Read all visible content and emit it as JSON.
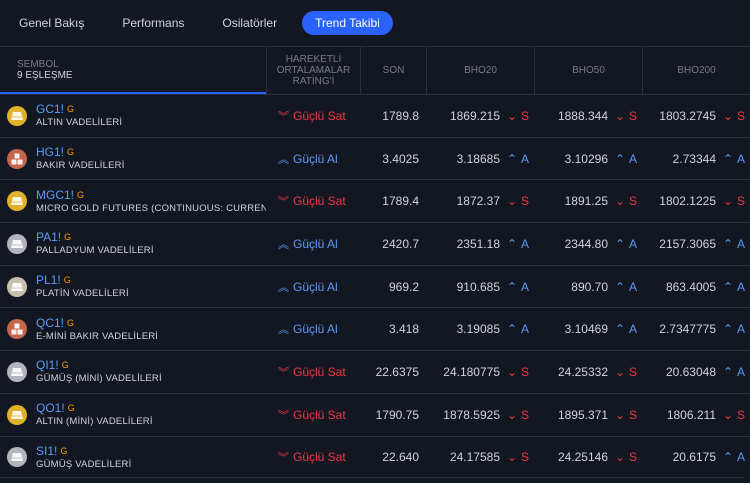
{
  "tabs": [
    {
      "label": "Genel Bakış",
      "active": false
    },
    {
      "label": "Performans",
      "active": false
    },
    {
      "label": "Osilatörler",
      "active": false
    },
    {
      "label": "Trend Takibi",
      "active": true
    }
  ],
  "header": {
    "symbol_label": "SEMBOL",
    "match_count": "9 EŞLEŞME",
    "rating_label": "HAREKETLİ ORTALAMALAR RATİNG'İ",
    "son_label": "SON",
    "bho20_label": "BHO20",
    "bho50_label": "BHO50",
    "bho200_label": "BHO200"
  },
  "colors": {
    "sell": "#f23645",
    "buy": "#5b9cf6",
    "accent": "#2962ff",
    "gold": "#e0b12a",
    "copper": "#c4664a",
    "silver": "#b2b5be"
  },
  "rows": [
    {
      "ticker": "GC1!",
      "flag": "G",
      "desc": "ALTIN VADELİLERİ",
      "logo": "gold-bar-icon",
      "logo_color": "#e0b12a",
      "rating": "Güçlü Sat",
      "rating_type": "sell",
      "son": "1789.8",
      "bho20": "1869.215",
      "bho20_sig": "S",
      "bho50": "1888.344",
      "bho50_sig": "S",
      "bho200": "1803.2745",
      "bho200_sig": "S"
    },
    {
      "ticker": "HG1!",
      "flag": "G",
      "desc": "BAKIR VADELİLERİ",
      "logo": "copper-cubes-icon",
      "logo_color": "#c4664a",
      "rating": "Güçlü Al",
      "rating_type": "buy",
      "son": "3.4025",
      "bho20": "3.18685",
      "bho20_sig": "A",
      "bho50": "3.10296",
      "bho50_sig": "A",
      "bho200": "2.73344",
      "bho200_sig": "A"
    },
    {
      "ticker": "MGC1!",
      "flag": "G",
      "desc": "MICRO GOLD FUTURES (CONTINUOUS: CURRENT CO",
      "logo": "gold-bar-icon",
      "logo_color": "#e0b12a",
      "rating": "Güçlü Sat",
      "rating_type": "sell",
      "son": "1789.4",
      "bho20": "1872.37",
      "bho20_sig": "S",
      "bho50": "1891.25",
      "bho50_sig": "S",
      "bho200": "1802.1225",
      "bho200_sig": "S"
    },
    {
      "ticker": "PA1!",
      "flag": "G",
      "desc": "PALLADYUM VADELİLERİ",
      "logo": "silver-bar-icon",
      "logo_color": "#b2b5be",
      "rating": "Güçlü Al",
      "rating_type": "buy",
      "son": "2420.7",
      "bho20": "2351.18",
      "bho20_sig": "A",
      "bho50": "2344.80",
      "bho50_sig": "A",
      "bho200": "2157.3065",
      "bho200_sig": "A"
    },
    {
      "ticker": "PL1!",
      "flag": "G",
      "desc": "PLATİN VADELİLERİ",
      "logo": "platinum-bar-icon",
      "logo_color": "#c8c0ad",
      "rating": "Güçlü Al",
      "rating_type": "buy",
      "son": "969.2",
      "bho20": "910.685",
      "bho20_sig": "A",
      "bho50": "890.70",
      "bho50_sig": "A",
      "bho200": "863.4005",
      "bho200_sig": "A"
    },
    {
      "ticker": "QC1!",
      "flag": "G",
      "desc": "E-MİNİ BAKIR VADELİLERİ",
      "logo": "copper-cubes-icon",
      "logo_color": "#c4664a",
      "rating": "Güçlü Al",
      "rating_type": "buy",
      "son": "3.418",
      "bho20": "3.19085",
      "bho20_sig": "A",
      "bho50": "3.10469",
      "bho50_sig": "A",
      "bho200": "2.7347775",
      "bho200_sig": "A"
    },
    {
      "ticker": "QI1!",
      "flag": "G",
      "desc": "GÜMÜŞ (MİNİ) VADELİLERİ",
      "logo": "silver-bar-icon",
      "logo_color": "#b2b5be",
      "rating": "Güçlü Sat",
      "rating_type": "sell",
      "son": "22.6375",
      "bho20": "24.180775",
      "bho20_sig": "S",
      "bho50": "24.25332",
      "bho50_sig": "S",
      "bho200": "20.63048",
      "bho200_sig": "A"
    },
    {
      "ticker": "QO1!",
      "flag": "G",
      "desc": "ALTIN (MİNİ) VADELİLERİ",
      "logo": "gold-bar-icon",
      "logo_color": "#e0b12a",
      "rating": "Güçlü Sat",
      "rating_type": "sell",
      "son": "1790.75",
      "bho20": "1878.5925",
      "bho20_sig": "S",
      "bho50": "1895.371",
      "bho50_sig": "S",
      "bho200": "1806.211",
      "bho200_sig": "S"
    },
    {
      "ticker": "SI1!",
      "flag": "G",
      "desc": "GÜMÜŞ VADELİLERİ",
      "logo": "silver-bar-icon",
      "logo_color": "#b2b5be",
      "rating": "Güçlü Sat",
      "rating_type": "sell",
      "son": "22.640",
      "bho20": "24.17585",
      "bho20_sig": "S",
      "bho50": "24.25146",
      "bho50_sig": "S",
      "bho200": "20.6175",
      "bho200_sig": "A"
    }
  ]
}
